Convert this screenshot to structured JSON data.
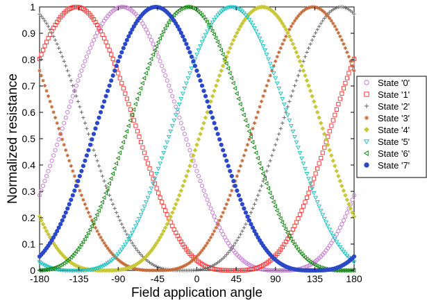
{
  "chart_data": {
    "type": "scatter",
    "title": "",
    "xlabel": "Field application angle",
    "ylabel": "Normalized resistance",
    "xlim": [
      -180,
      180
    ],
    "ylim": [
      0,
      1.0
    ],
    "xticks": [
      -180,
      -135,
      -90,
      -45,
      0,
      45,
      90,
      135,
      180
    ],
    "yticks": [
      0,
      0.1,
      0.2,
      0.3,
      0.4,
      0.5,
      0.6,
      0.7,
      0.8,
      0.9,
      1
    ],
    "grid": false,
    "legend_position": "right",
    "series": [
      {
        "name": "State '0'",
        "marker": "circle",
        "color": "#c77fd3",
        "peak_angle": -85,
        "min_value": 0.0
      },
      {
        "name": "State '1'",
        "marker": "square",
        "color": "#ff3b3b",
        "peak_angle": -138,
        "min_value": 0.0
      },
      {
        "name": "State '2'",
        "marker": "cross",
        "color": "#666666",
        "peak_angle": 165,
        "min_value": 0.0
      },
      {
        "name": "State '3'",
        "marker": "star",
        "color": "#c46b3a",
        "peak_angle": 133,
        "min_value": 0.0
      },
      {
        "name": "State '4'",
        "marker": "diamond",
        "color": "#c8c83a",
        "peak_angle": 75,
        "min_value": 0.0
      },
      {
        "name": "State '5'",
        "marker": "triangle-down",
        "color": "#22c3c3",
        "peak_angle": 40,
        "min_value": 0.0
      },
      {
        "name": "State '6'",
        "marker": "triangle-left",
        "color": "#1a8a1a",
        "peak_angle": -10,
        "min_value": 0.0
      },
      {
        "name": "State '7'",
        "marker": "dot",
        "color": "#2a48c8",
        "peak_angle": -47,
        "min_value": 0.0
      }
    ]
  }
}
